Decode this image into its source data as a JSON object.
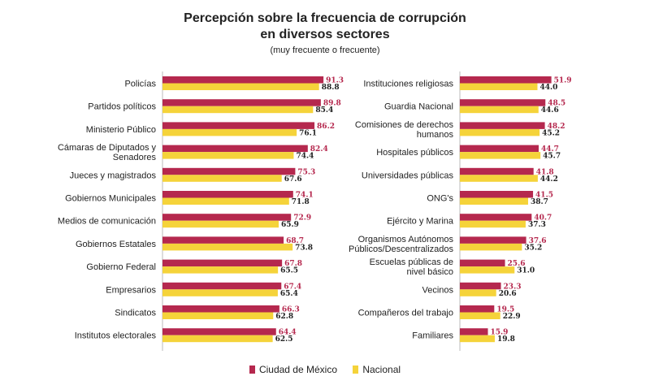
{
  "header": {
    "title_line1": "Percepción sobre la frecuencia de corrupción",
    "title_line2": "en diversos sectores",
    "subtitle": "(muy frecuente o frecuente)"
  },
  "colors": {
    "cdmx": "#b5284e",
    "nacional": "#f5d33a",
    "axis": "#bbbbbb"
  },
  "chart_data": [
    {
      "type": "bar",
      "orientation": "horizontal",
      "categories": [
        "Policías",
        "Partidos políticos",
        "Ministerio Público",
        "Cámaras de Diputados y Senadores",
        "Jueces y magistrados",
        "Gobiernos Municipales",
        "Medios de comunicación",
        "Gobiernos Estatales",
        "Gobierno Federal",
        "Empresarios",
        "Sindicatos",
        "Institutos electorales"
      ],
      "series": [
        {
          "name": "Ciudad de México",
          "values": [
            91.3,
            89.8,
            86.2,
            82.4,
            75.3,
            74.1,
            72.9,
            68.7,
            67.8,
            67.4,
            66.3,
            64.4
          ]
        },
        {
          "name": "Nacional",
          "values": [
            88.8,
            85.4,
            76.1,
            74.4,
            67.6,
            71.8,
            65.9,
            73.8,
            65.5,
            65.4,
            62.8,
            62.5
          ]
        }
      ],
      "xlim": [
        0,
        100
      ],
      "legend": "bottom"
    },
    {
      "type": "bar",
      "orientation": "horizontal",
      "categories": [
        "Instituciones religiosas",
        "Guardia Nacional",
        "Comisiones de derechos humanos",
        "Hospitales públicos",
        "Universidades públicas",
        "ONG's",
        "Ejército y Marina",
        "Organismos Autónomos Públicos/Descentralizados",
        "Escuelas públicas de nivel básico",
        "Vecinos",
        "Compañeros del trabajo",
        "Familiares"
      ],
      "series": [
        {
          "name": "Ciudad de México",
          "values": [
            51.9,
            48.5,
            48.2,
            44.7,
            41.8,
            41.5,
            40.7,
            37.6,
            25.6,
            23.3,
            19.5,
            15.9
          ]
        },
        {
          "name": "Nacional",
          "values": [
            44.0,
            44.6,
            45.2,
            45.7,
            44.2,
            38.7,
            37.3,
            35.2,
            31.0,
            20.6,
            22.9,
            19.8
          ]
        }
      ],
      "xlim": [
        0,
        100
      ],
      "legend": "bottom"
    }
  ],
  "legend_labels": [
    "Ciudad de México",
    "Nacional"
  ]
}
